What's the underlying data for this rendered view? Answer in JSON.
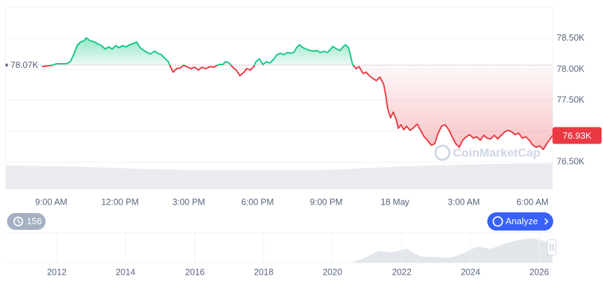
{
  "chart_data": {
    "type": "line",
    "x": [
      8.6,
      9.06,
      9.21,
      9.67,
      9.83,
      9.98,
      10.13,
      10.28,
      10.44,
      10.53,
      10.68,
      10.9,
      11.05,
      11.2,
      11.35,
      11.51,
      11.66,
      11.81,
      11.97,
      12.12,
      12.27,
      12.42,
      12.58,
      12.73,
      12.88,
      13.04,
      13.19,
      13.34,
      13.5,
      13.65,
      13.8,
      13.95,
      14.11,
      14.2,
      14.32,
      14.47,
      14.63,
      14.78,
      14.96,
      15.09,
      15.27,
      15.42,
      15.57,
      15.73,
      15.94,
      16.09,
      16.31,
      16.49,
      16.61,
      16.77,
      16.92,
      17.07,
      17.23,
      17.41,
      17.53,
      17.69,
      17.84,
      17.93,
      18.08,
      18.24,
      18.39,
      18.54,
      18.69,
      18.85,
      19.0,
      19.15,
      19.31,
      19.46,
      19.61,
      19.7,
      19.83,
      19.98,
      20.13,
      20.28,
      20.44,
      20.59,
      20.74,
      20.9,
      21.05,
      21.2,
      21.29,
      21.45,
      21.6,
      21.75,
      21.84,
      21.97,
      22.06,
      22.15,
      22.3,
      22.43,
      22.52,
      22.61,
      22.73,
      22.88,
      23.04,
      23.19,
      23.34,
      23.5,
      23.59,
      23.68,
      23.8,
      23.92,
      24.05,
      24.14,
      24.26,
      24.38,
      24.5,
      24.66,
      24.81,
      24.96,
      25.12,
      25.27,
      25.42,
      25.58,
      25.73,
      25.88,
      26.03,
      26.19,
      26.34,
      26.49,
      26.65,
      26.8,
      26.95,
      27.1,
      27.26,
      27.41,
      27.56,
      27.72,
      27.87,
      28.02,
      28.17,
      28.33,
      28.48,
      28.63,
      28.79,
      28.94,
      29.09,
      29.24,
      29.4,
      29.55,
      29.7,
      29.86,
      30.01,
      30.16,
      30.31,
      30.47,
      30.62,
      30.77,
      30.87
    ],
    "series": [
      {
        "up_color": "#16c784",
        "down_color": "#ea3943",
        "values": [
          78045,
          78068,
          78091,
          78091,
          78125,
          78239,
          78386,
          78443,
          78466,
          78511,
          78466,
          78443,
          78409,
          78386,
          78329,
          78364,
          78329,
          78386,
          78352,
          78386,
          78364,
          78398,
          78420,
          78443,
          78352,
          78307,
          78273,
          78250,
          78295,
          78261,
          78239,
          78182,
          78125,
          78045,
          77955,
          78011,
          78023,
          78068,
          78034,
          78011,
          78034,
          77989,
          78034,
          78011,
          78045,
          78034,
          78080,
          78080,
          78125,
          78102,
          78034,
          77989,
          77898,
          77955,
          78011,
          77989,
          78045,
          78125,
          78170,
          78080,
          78125,
          78102,
          78159,
          78239,
          78261,
          78239,
          78273,
          78261,
          78284,
          78352,
          78398,
          78352,
          78329,
          78307,
          78295,
          78307,
          78273,
          78295,
          78273,
          78329,
          78375,
          78329,
          78307,
          78375,
          78398,
          78352,
          78216,
          78080,
          78011,
          78045,
          77989,
          77932,
          77955,
          77898,
          77852,
          77818,
          77875,
          77761,
          77591,
          77364,
          77216,
          77307,
          77193,
          77046,
          77103,
          77023,
          77080,
          77012,
          77057,
          77114,
          77012,
          76909,
          76852,
          76773,
          76796,
          76966,
          77080,
          77103,
          77023,
          76909,
          76796,
          76739,
          76852,
          76909,
          76943,
          76886,
          76909,
          76852,
          76932,
          76886,
          76875,
          76932,
          76875,
          76932,
          76989,
          77012,
          76989,
          76943,
          76966,
          76886,
          76909,
          76852,
          76773,
          76739,
          76761,
          76705,
          76796,
          76875,
          76930
        ]
      }
    ],
    "reference_line": {
      "value": 78070,
      "label": "78.07K"
    },
    "price_tag": {
      "value": 76930,
      "label": "76.93K"
    },
    "xlim": [
      7.01,
      30.87
    ],
    "xticks": [
      {
        "value": 9,
        "label": "9:00 AM"
      },
      {
        "value": 12,
        "label": "12:00 PM"
      },
      {
        "value": 15,
        "label": "3:00 PM"
      },
      {
        "value": 18,
        "label": "6:00 PM"
      },
      {
        "value": 21,
        "label": "9:00 PM"
      },
      {
        "value": 24,
        "label": "18 May"
      },
      {
        "value": 27,
        "label": "3:00 AM"
      },
      {
        "value": 30,
        "label": "6:00 AM"
      }
    ],
    "ylim": [
      76060,
      79010
    ],
    "yticks": [
      {
        "value": 76500,
        "label": "76.50K"
      },
      {
        "value": 77000,
        "label": ""
      },
      {
        "value": 77500,
        "label": "77.50K"
      },
      {
        "value": 78000,
        "label": "78.00K"
      },
      {
        "value": 78500,
        "label": "78.50K"
      }
    ],
    "grid": true,
    "watermark": "CoinMarketCap"
  },
  "controls": {
    "history_count": 156,
    "analyze_button": "Analyze"
  },
  "navigator": {
    "labels": [
      "2012",
      "2014",
      "2016",
      "2018",
      "2020",
      "2022",
      "2024",
      "2026"
    ]
  }
}
